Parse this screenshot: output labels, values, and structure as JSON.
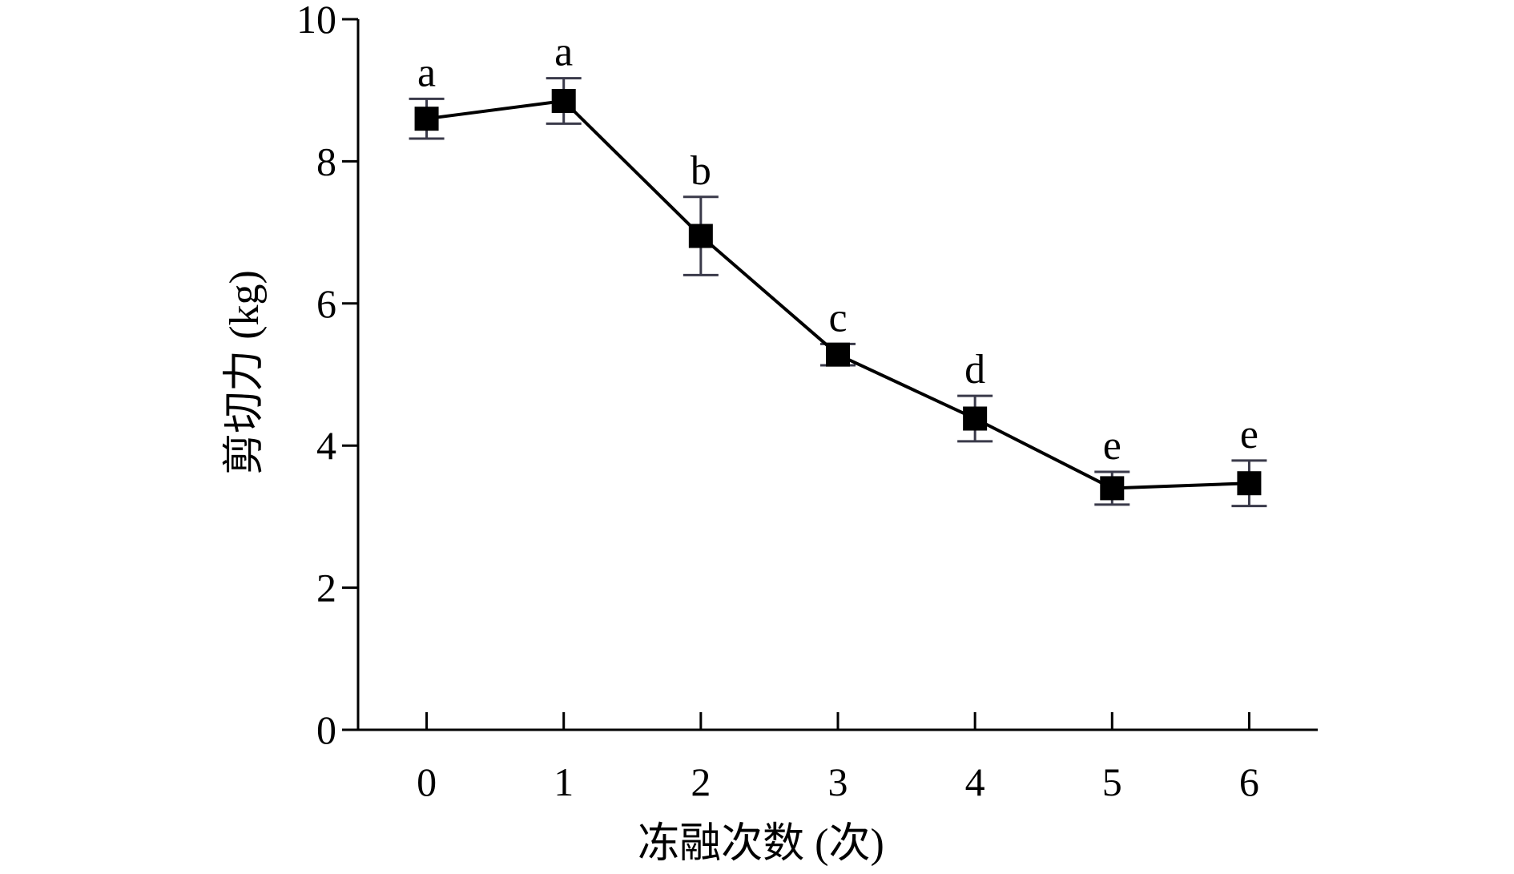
{
  "chart_data": {
    "type": "line",
    "xlabel": "冻融次数 (次)",
    "ylabel": "剪切力 (kg)",
    "x": [
      0,
      1,
      2,
      3,
      4,
      5,
      6
    ],
    "x_ticks": [
      "0",
      "1",
      "2",
      "3",
      "4",
      "5",
      "6"
    ],
    "xlim": [
      -0.5,
      6.5
    ],
    "ylim": [
      0,
      10
    ],
    "y_ticks": [
      "0",
      "2",
      "4",
      "6",
      "8",
      "10"
    ],
    "series": [
      {
        "values": [
          8.6,
          8.85,
          6.95,
          5.28,
          4.38,
          3.4,
          3.47
        ],
        "errors": [
          0.28,
          0.32,
          0.55,
          0.15,
          0.32,
          0.23,
          0.32
        ],
        "significance": [
          "a",
          "a",
          "b",
          "c",
          "d",
          "e",
          "e"
        ]
      }
    ],
    "grid": false,
    "colors": {
      "line": "#000000",
      "marker": "#000000",
      "error_bar": "#3a3a4a",
      "axis": "#000000"
    }
  }
}
